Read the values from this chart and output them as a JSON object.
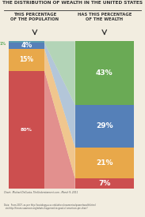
{
  "title": "THE DISTRIBUTION OF WEALTH IN THE UNITED STATES",
  "left_header": "THIS PERCENTAGE\nOF THE POPULATION",
  "right_header": "HAS THIS PERCENTAGE\nOF THE WEALTH",
  "left_segments": [
    {
      "label": "1%",
      "value": 1,
      "color": "#5a9db0"
    },
    {
      "label": "4%",
      "value": 4,
      "color": "#5580b8"
    },
    {
      "label": "15%",
      "value": 15,
      "color": "#e8a84a"
    },
    {
      "label": "80%",
      "value": 80,
      "color": "#cc4f4f"
    }
  ],
  "right_segments": [
    {
      "label": "43%",
      "value": 43,
      "color": "#6aaa55"
    },
    {
      "label": "29%",
      "value": 29,
      "color": "#5580b8"
    },
    {
      "label": "21%",
      "value": 21,
      "color": "#e8a84a"
    },
    {
      "label": "7%",
      "value": 7,
      "color": "#cc4f4f"
    }
  ],
  "trap_colors": [
    "#e08080",
    "#f0c080",
    "#a8c0d8",
    "#a8d0b0"
  ],
  "bg_color": "#f2ede0",
  "text_color": "#333333",
  "footnote1": "Chart:  Michael DeGusta, TheUnderstament.com - March 9, 2011",
  "footnote2": "Data:  From 2007, as per http://sociology.ucsc.edu/whorulesamerica/power/wealth.html\n  via http://forum.swamcon.org/whats-happened-to-good-ol-american-pie-chart/"
}
